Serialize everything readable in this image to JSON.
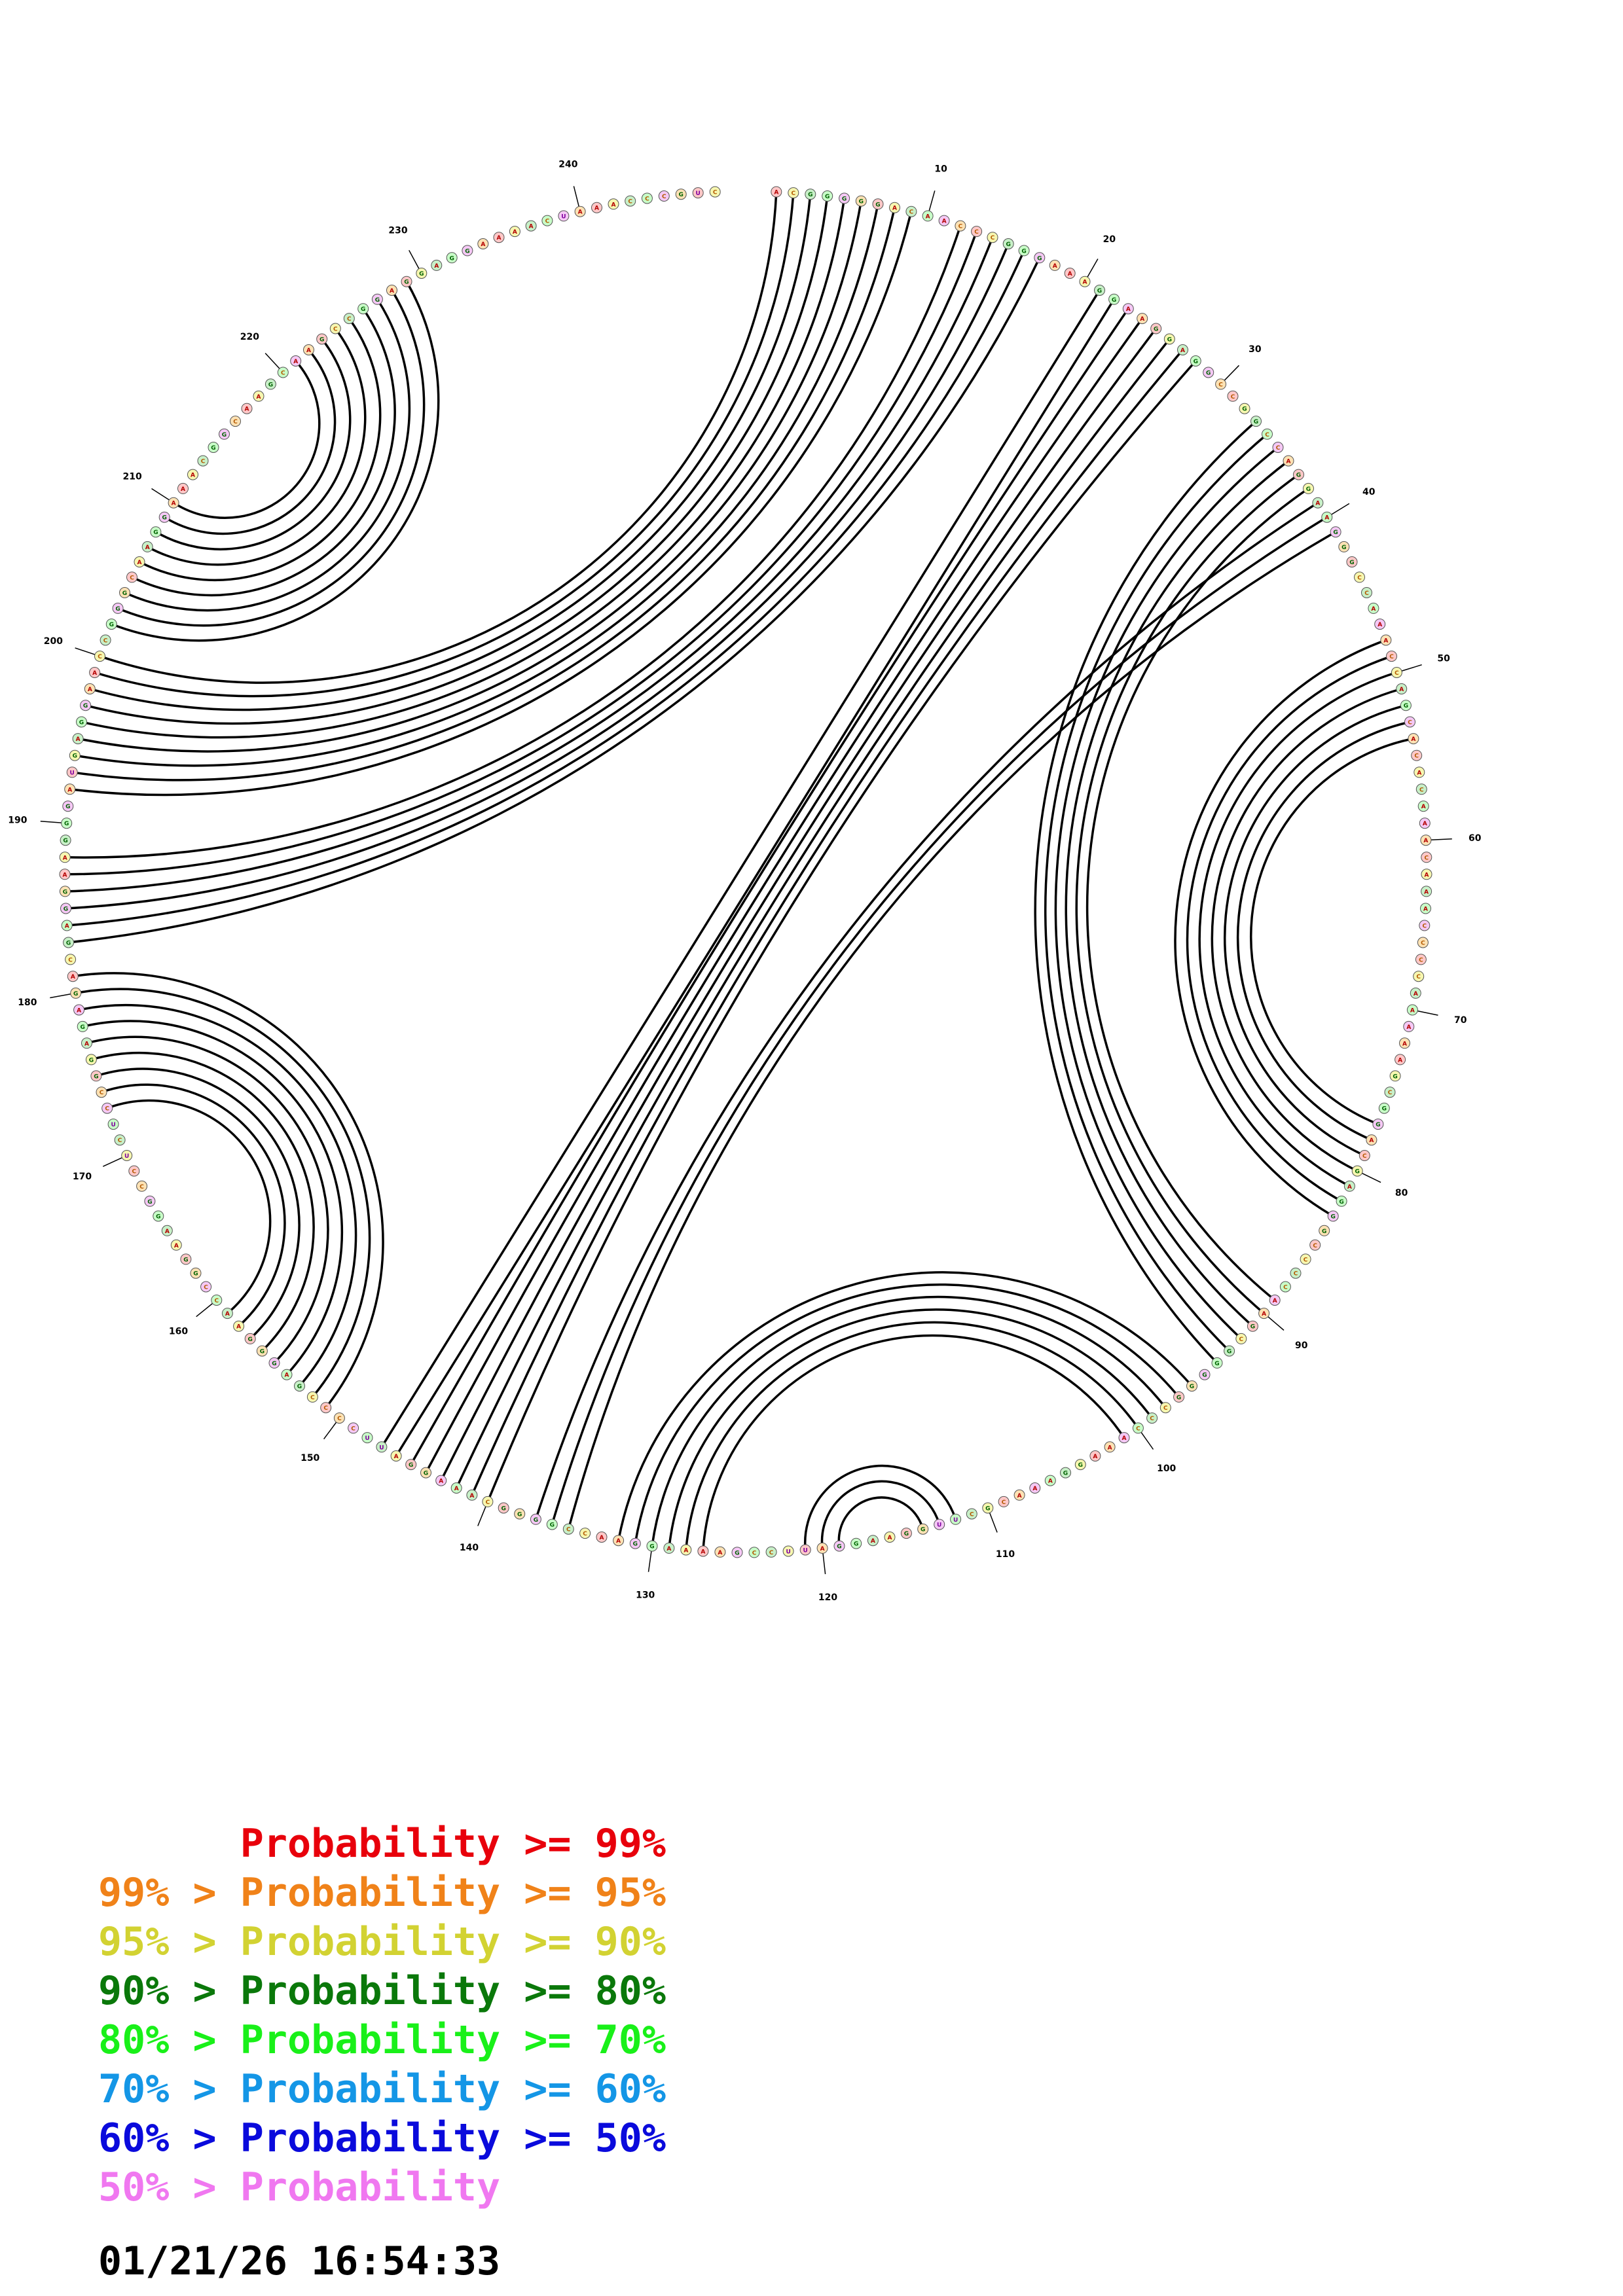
{
  "sequence": "ACGGGGGACAACCCGGGAAAGGAAGGAGGCCGGCCAGGAAGGGCCAAACCAGCACACAAACAAACCCCAAAAAGCGGACGAGGGCCCCAAGCGGGGGCCCAAAGGAAACGCUUGGAAGGAUUCCGAAAAGGAACCGGGGCAAAGGAUUCCCCGAGGGAACCGGAAGGCCUCUCCGGAGAGACGAGGAAGGGAUGAGGAACCGGGCAAGGAAACGGCAAGCAAGCCGGAGGAGGAAAACUAAACCCGUC",
  "position_labels": [
    "10",
    "20",
    "30",
    "40",
    "50",
    "60",
    "70",
    "80",
    "90",
    "100",
    "110",
    "120",
    "130",
    "140",
    "150",
    "160",
    "170",
    "180",
    "190",
    "200",
    "210",
    "220",
    "230",
    "240"
  ],
  "pairs": [
    [
      1,
      200
    ],
    [
      2,
      199
    ],
    [
      3,
      198
    ],
    [
      4,
      197
    ],
    [
      5,
      196
    ],
    [
      6,
      195
    ],
    [
      7,
      194
    ],
    [
      8,
      193
    ],
    [
      9,
      192
    ],
    [
      12,
      188
    ],
    [
      13,
      187
    ],
    [
      14,
      186
    ],
    [
      15,
      185
    ],
    [
      16,
      184
    ],
    [
      17,
      183
    ],
    [
      21,
      147
    ],
    [
      22,
      146
    ],
    [
      23,
      145
    ],
    [
      24,
      144
    ],
    [
      25,
      143
    ],
    [
      26,
      142
    ],
    [
      27,
      141
    ],
    [
      28,
      140
    ],
    [
      33,
      94
    ],
    [
      34,
      93
    ],
    [
      35,
      92
    ],
    [
      36,
      91
    ],
    [
      37,
      90
    ],
    [
      38,
      89
    ],
    [
      39,
      137
    ],
    [
      40,
      136
    ],
    [
      41,
      135
    ],
    [
      48,
      83
    ],
    [
      49,
      82
    ],
    [
      50,
      81
    ],
    [
      51,
      80
    ],
    [
      52,
      79
    ],
    [
      53,
      78
    ],
    [
      54,
      77
    ],
    [
      96,
      132
    ],
    [
      97,
      131
    ],
    [
      98,
      130
    ],
    [
      99,
      129
    ],
    [
      100,
      128
    ],
    [
      101,
      127
    ],
    [
      112,
      121
    ],
    [
      113,
      120
    ],
    [
      114,
      119
    ],
    [
      151,
      181
    ],
    [
      152,
      180
    ],
    [
      153,
      179
    ],
    [
      154,
      178
    ],
    [
      155,
      177
    ],
    [
      156,
      176
    ],
    [
      157,
      175
    ],
    [
      158,
      174
    ],
    [
      159,
      173
    ],
    [
      202,
      229
    ],
    [
      203,
      228
    ],
    [
      204,
      227
    ],
    [
      205,
      226
    ],
    [
      206,
      225
    ],
    [
      207,
      224
    ],
    [
      208,
      223
    ],
    [
      209,
      222
    ],
    [
      210,
      221
    ]
  ],
  "legend": [
    {
      "text": "      Probability >= 99%",
      "color": "#e8000b"
    },
    {
      "text": "99% > Probability >= 95%",
      "color": "#f08219"
    },
    {
      "text": "95% > Probability >= 90%",
      "color": "#d2d232"
    },
    {
      "text": "90% > Probability >= 80%",
      "color": "#0a780a"
    },
    {
      "text": "80% > Probability >= 70%",
      "color": "#19f019"
    },
    {
      "text": "70% > Probability >= 60%",
      "color": "#1496e6"
    },
    {
      "text": "60% > Probability >= 50%",
      "color": "#0a0adc"
    },
    {
      "text": "50% > Probability",
      "color": "#f078f0"
    }
  ],
  "timestamp": "01/21/26 16:54:33",
  "colors": {
    "pair_line": "#000000",
    "probability_palette": [
      "#e8000b",
      "#f08219",
      "#d2d232",
      "#0a780a",
      "#19f019",
      "#1496e6",
      "#0a0adc",
      "#f078f0"
    ],
    "nucleotide_fill": [
      "#fde2b4",
      "#ffc8c8",
      "#f7f7b0",
      "#c8f0c8",
      "#c8ffc8",
      "#f5c8f5"
    ]
  }
}
